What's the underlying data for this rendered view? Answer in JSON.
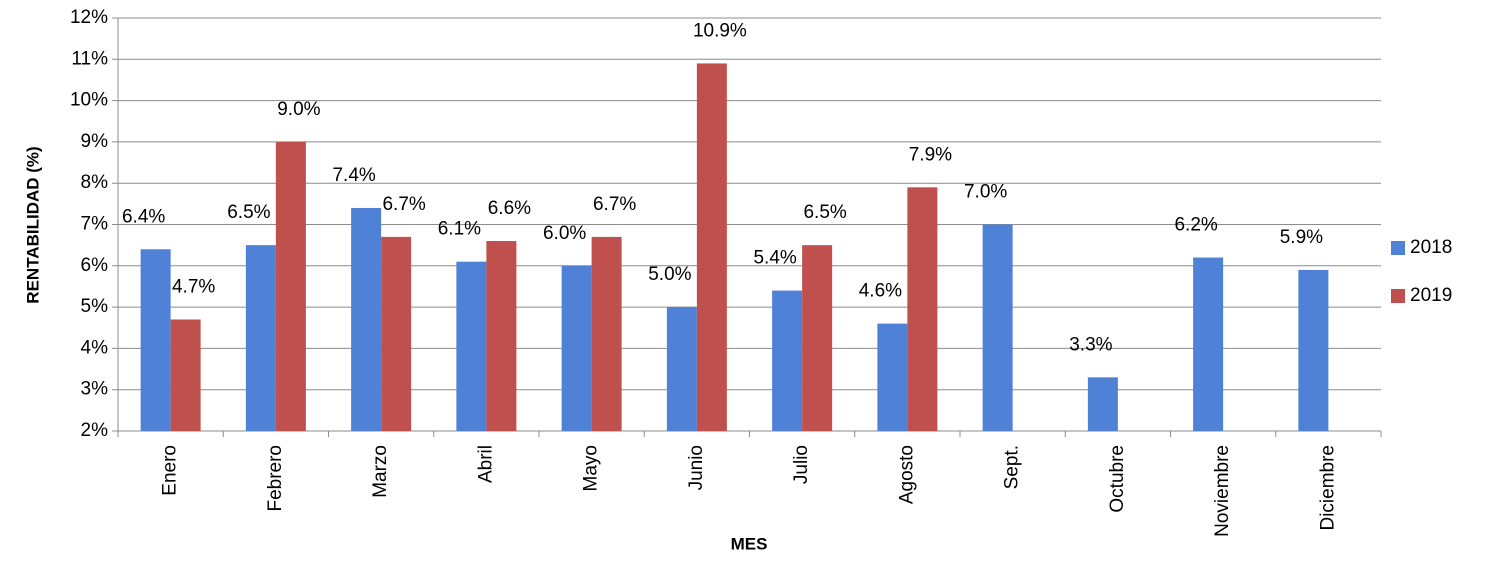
{
  "chart_data": {
    "type": "bar",
    "y_label": "RENTABILIDAD (%)",
    "x_label": "MES",
    "categories": [
      "Enero",
      "Febrero",
      "Marzo",
      "Abril",
      "Mayo",
      "Junio",
      "Julio",
      "Agosto",
      "Sept.",
      "Octubre",
      "Noviembre",
      "Diciembre"
    ],
    "series": [
      {
        "name": "2018",
        "color": "#4f81d6",
        "values": [
          6.4,
          6.5,
          7.4,
          6.1,
          6.0,
          5.0,
          5.4,
          4.6,
          7.0,
          3.3,
          6.2,
          5.9
        ],
        "value_labels": [
          "6.4%",
          "6.5%",
          "7.4%",
          "6.1%",
          "6.0%",
          "5.0%",
          "5.4%",
          "4.6%",
          "7.0%",
          "3.3%",
          "6.2%",
          "5.9%"
        ]
      },
      {
        "name": "2019",
        "color": "#c0504d",
        "values": [
          4.7,
          9.0,
          6.7,
          6.6,
          6.7,
          10.9,
          6.5,
          7.9,
          null,
          null,
          null,
          null
        ],
        "value_labels": [
          "4.7%",
          "9.0%",
          "6.7%",
          "6.6%",
          "6.7%",
          "10.9%",
          "6.5%",
          "7.9%",
          null,
          null,
          null,
          null
        ]
      }
    ],
    "ylim": [
      2,
      12
    ],
    "yticks": [
      {
        "value": 2,
        "label": "2%"
      },
      {
        "value": 3,
        "label": "3%"
      },
      {
        "value": 4,
        "label": "4%"
      },
      {
        "value": 5,
        "label": "5%"
      },
      {
        "value": 6,
        "label": "6%"
      },
      {
        "value": 7,
        "label": "7%"
      },
      {
        "value": 8,
        "label": "8%"
      },
      {
        "value": 9,
        "label": "9%"
      },
      {
        "value": 10,
        "label": "10%"
      },
      {
        "value": 11,
        "label": "11%"
      },
      {
        "value": 12,
        "label": "12%"
      }
    ],
    "grid": true,
    "legend": "right"
  }
}
